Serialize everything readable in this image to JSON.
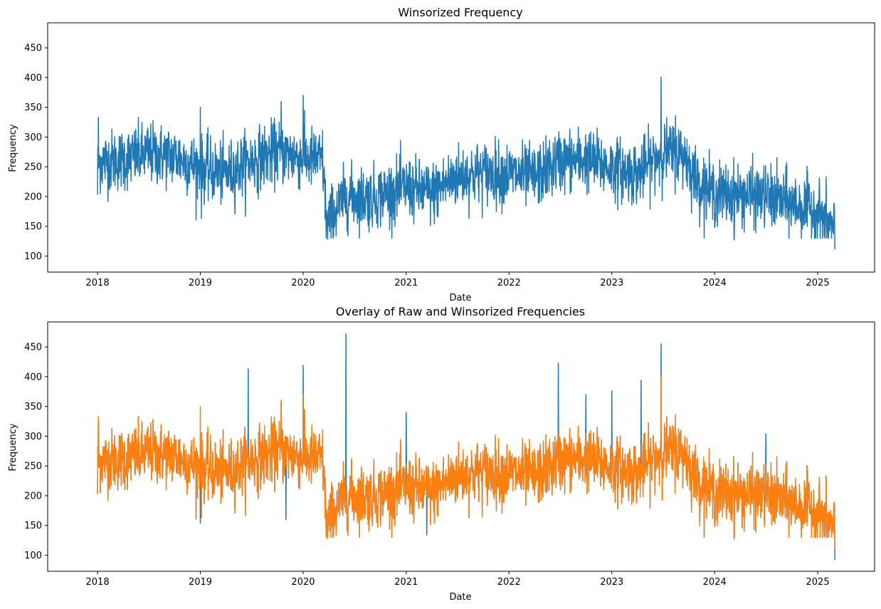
{
  "chart_data": [
    {
      "type": "line",
      "title": "Winsorized Frequency",
      "xlabel": "Date",
      "ylabel": "Frequency",
      "xlim": [
        "2017-07-08",
        "2025-07-22"
      ],
      "ylim": [
        73,
        492
      ],
      "x_ticks": [
        "2018-01-01",
        "2019-01-01",
        "2020-01-01",
        "2021-01-01",
        "2022-01-01",
        "2023-01-01",
        "2024-01-01",
        "2025-01-01"
      ],
      "x_tick_labels": [
        "2018",
        "2019",
        "2020",
        "2021",
        "2022",
        "2023",
        "2024",
        "2025"
      ],
      "y_ticks": [
        100,
        150,
        200,
        250,
        300,
        350,
        400,
        450
      ],
      "y_tick_labels": [
        "100",
        "150",
        "200",
        "250",
        "300",
        "350",
        "400",
        "450"
      ],
      "grid": false,
      "series": [
        {
          "color": "#1f77b4",
          "date_range": [
            "2018-01-01",
            "2025-03-03"
          ],
          "trend": {
            "x": [
              "2018-01-01",
              "2018-04-01",
              "2018-07-01",
              "2018-10-01",
              "2019-01-01",
              "2019-04-01",
              "2019-07-01",
              "2019-10-01",
              "2020-01-01",
              "2020-03-10",
              "2020-03-25",
              "2020-06-01",
              "2020-09-01",
              "2021-01-01",
              "2021-04-01",
              "2021-07-01",
              "2021-10-01",
              "2022-01-01",
              "2022-04-01",
              "2022-07-01",
              "2022-10-01",
              "2023-01-01",
              "2023-04-01",
              "2023-07-01",
              "2023-09-15",
              "2023-11-01",
              "2024-01-01",
              "2024-07-01",
              "2025-01-01",
              "2025-03-03"
            ],
            "y": [
              258,
              262,
              272,
              268,
              248,
              238,
              260,
              275,
              265,
              262,
              155,
              200,
              198,
              215,
              205,
              235,
              240,
              238,
              232,
              260,
              262,
              248,
              238,
              275,
              270,
              225,
              205,
              200,
              175,
              140
            ]
          },
          "noise_sd": 26,
          "peaks": [
            {
              "x": "2018-01-04",
              "y": 333
            },
            {
              "x": "2019-01-01",
              "y": 350
            },
            {
              "x": "2019-10-15",
              "y": 360
            },
            {
              "x": "2020-01-01",
              "y": 370
            },
            {
              "x": "2023-06-25",
              "y": 401
            },
            {
              "x": "2023-08-15",
              "y": 336
            }
          ],
          "troughs": [
            {
              "x": "2018-01-01",
              "y": 203
            },
            {
              "x": "2019-01-05",
              "y": 163
            },
            {
              "x": "2020-03-28",
              "y": 128
            },
            {
              "x": "2024-03-10",
              "y": 127
            },
            {
              "x": "2025-03-03",
              "y": 111
            }
          ]
        }
      ]
    },
    {
      "type": "line",
      "title": "Overlay of Raw and Winsorized Frequencies",
      "xlabel": "Date",
      "ylabel": "Frequency",
      "xlim": [
        "2017-07-08",
        "2025-07-22"
      ],
      "ylim": [
        73,
        492
      ],
      "x_ticks": [
        "2018-01-01",
        "2019-01-01",
        "2020-01-01",
        "2021-01-01",
        "2022-01-01",
        "2023-01-01",
        "2024-01-01",
        "2025-01-01"
      ],
      "x_tick_labels": [
        "2018",
        "2019",
        "2020",
        "2021",
        "2022",
        "2023",
        "2024",
        "2025"
      ],
      "y_ticks": [
        100,
        150,
        200,
        250,
        300,
        350,
        400,
        450
      ],
      "y_tick_labels": [
        "100",
        "150",
        "200",
        "250",
        "300",
        "350",
        "400",
        "450"
      ],
      "grid": false,
      "series": [
        {
          "color": "#1f77b4",
          "description_of_values": "raw",
          "spikes": [
            {
              "x": "2019-06-20",
              "y": 413
            },
            {
              "x": "2020-01-01",
              "y": 419
            },
            {
              "x": "2020-06-01",
              "y": 472
            },
            {
              "x": "2021-01-01",
              "y": 340
            },
            {
              "x": "2022-06-25",
              "y": 423
            },
            {
              "x": "2022-10-01",
              "y": 370
            },
            {
              "x": "2023-01-01",
              "y": 376
            },
            {
              "x": "2023-04-15",
              "y": 394
            },
            {
              "x": "2023-06-25",
              "y": 455
            },
            {
              "x": "2024-07-01",
              "y": 304
            },
            {
              "x": "2019-01-01",
              "y": 154
            },
            {
              "x": "2019-11-01",
              "y": 160
            },
            {
              "x": "2021-03-15",
              "y": 134
            },
            {
              "x": "2025-03-03",
              "y": 92
            }
          ]
        },
        {
          "color": "#ff7f0e",
          "description_of_values": "winsorized (same as upper panel)"
        }
      ]
    }
  ]
}
